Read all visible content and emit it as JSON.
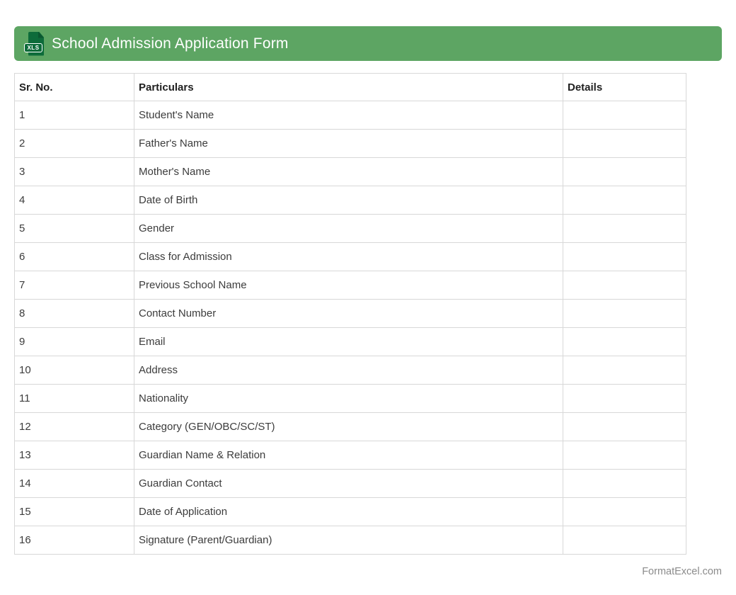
{
  "title_bar": {
    "title": "School Admission Application Form",
    "icon_label": "XLS",
    "colors": {
      "bar_background": "#5da563",
      "icon_background": "#0d6b3a",
      "title_text": "#ffffff"
    }
  },
  "table": {
    "columns": [
      "Sr. No.",
      "Particulars",
      "Details"
    ],
    "rows": [
      {
        "sr_no": "1",
        "particulars": "Student's Name",
        "details": ""
      },
      {
        "sr_no": "2",
        "particulars": "Father's Name",
        "details": ""
      },
      {
        "sr_no": "3",
        "particulars": "Mother's Name",
        "details": ""
      },
      {
        "sr_no": "4",
        "particulars": "Date of Birth",
        "details": ""
      },
      {
        "sr_no": "5",
        "particulars": "Gender",
        "details": ""
      },
      {
        "sr_no": "6",
        "particulars": "Class for Admission",
        "details": ""
      },
      {
        "sr_no": "7",
        "particulars": "Previous School Name",
        "details": ""
      },
      {
        "sr_no": "8",
        "particulars": "Contact Number",
        "details": ""
      },
      {
        "sr_no": "9",
        "particulars": "Email",
        "details": ""
      },
      {
        "sr_no": "10",
        "particulars": "Address",
        "details": ""
      },
      {
        "sr_no": "11",
        "particulars": "Nationality",
        "details": ""
      },
      {
        "sr_no": "12",
        "particulars": "Category (GEN/OBC/SC/ST)",
        "details": ""
      },
      {
        "sr_no": "13",
        "particulars": "Guardian Name & Relation",
        "details": ""
      },
      {
        "sr_no": "14",
        "particulars": "Guardian Contact",
        "details": ""
      },
      {
        "sr_no": "15",
        "particulars": "Date of Application",
        "details": ""
      },
      {
        "sr_no": "16",
        "particulars": "Signature (Parent/Guardian)",
        "details": ""
      }
    ]
  },
  "footer": {
    "credit": "FormatExcel.com"
  }
}
